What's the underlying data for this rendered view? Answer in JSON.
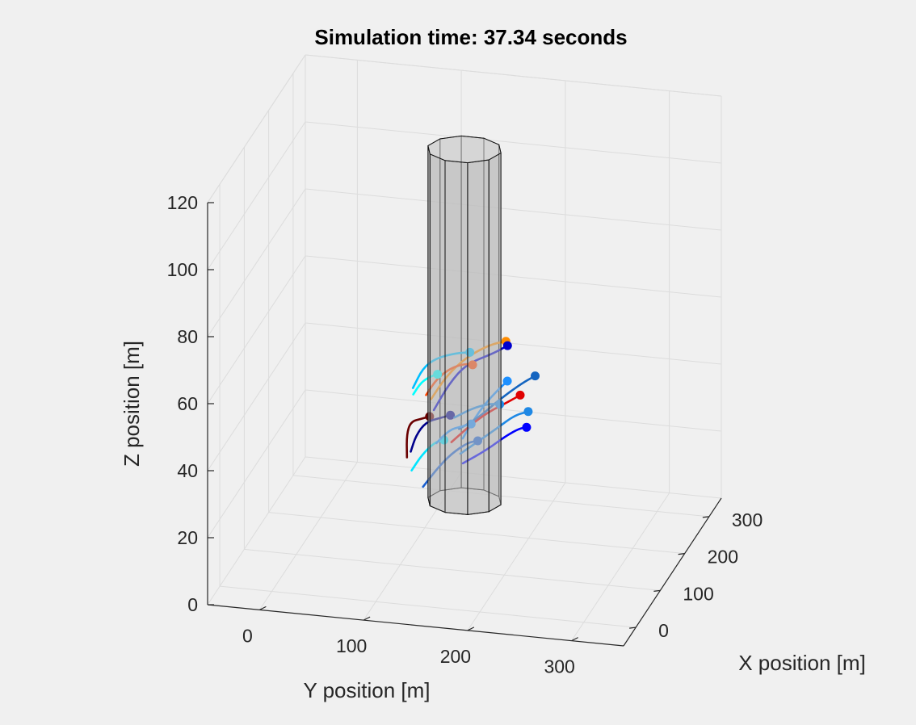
{
  "figure": {
    "background": "#f0f0f0"
  },
  "chart_data": {
    "type": "3d-line",
    "title": "Simulation time: 37.34 seconds",
    "xlabel": "X position [m]",
    "ylabel": "Y position [m]",
    "zlabel": "Z position [m]",
    "xlim": [
      -50,
      350
    ],
    "ylim": [
      -50,
      350
    ],
    "zlim": [
      0,
      120
    ],
    "x_ticks": [
      "0",
      "100",
      "200",
      "300"
    ],
    "y_ticks": [
      "0",
      "100",
      "200",
      "300"
    ],
    "z_ticks": [
      "0",
      "20",
      "40",
      "60",
      "80",
      "100",
      "120"
    ],
    "grid": true,
    "cylinder": {
      "center_x": 150,
      "center_y": 150,
      "radius": 35,
      "z_bottom": 15,
      "z_top": 120,
      "sides": 10,
      "face_color": "#bebebe"
    },
    "trajectories": [
      {
        "color": "#1e90ff",
        "points": [
          [
            113,
            157,
            38
          ],
          [
            130,
            160,
            40
          ],
          [
            150,
            168,
            44
          ],
          [
            170,
            178,
            47
          ],
          [
            185,
            183,
            48
          ]
        ]
      },
      {
        "color": "#ff8c00",
        "points": [
          [
            120,
            125,
            48
          ],
          [
            140,
            135,
            53
          ],
          [
            160,
            150,
            57
          ],
          [
            180,
            168,
            59
          ],
          [
            192,
            180,
            59
          ]
        ]
      },
      {
        "color": "#0000cd",
        "points": [
          [
            110,
            130,
            46
          ],
          [
            130,
            140,
            52
          ],
          [
            150,
            152,
            56
          ],
          [
            175,
            172,
            57
          ],
          [
            190,
            182,
            58
          ]
        ]
      },
      {
        "color": "#00bfff",
        "points": [
          [
            118,
            108,
            51
          ],
          [
            128,
            115,
            56
          ],
          [
            140,
            125,
            58
          ],
          [
            158,
            140,
            58
          ],
          [
            172,
            150,
            57
          ]
        ]
      },
      {
        "color": "#ff4500",
        "points": [
          [
            112,
            122,
            50
          ],
          [
            122,
            130,
            54
          ],
          [
            135,
            140,
            56
          ],
          [
            150,
            150,
            56
          ],
          [
            158,
            156,
            55
          ]
        ]
      },
      {
        "color": "#00ffff",
        "points": [
          [
            102,
            112,
            51
          ],
          [
            110,
            118,
            54
          ],
          [
            118,
            125,
            55
          ],
          [
            125,
            130,
            55
          ]
        ]
      },
      {
        "color": "#1565c0",
        "points": [
          [
            128,
            150,
            39
          ],
          [
            145,
            165,
            41
          ],
          [
            165,
            178,
            44
          ],
          [
            190,
            195,
            47
          ],
          [
            205,
            205,
            48
          ]
        ]
      },
      {
        "color": "#e00000",
        "points": [
          [
            118,
            145,
            36
          ],
          [
            140,
            158,
            39
          ],
          [
            160,
            170,
            41
          ],
          [
            180,
            183,
            42
          ],
          [
            195,
            193,
            43
          ]
        ]
      },
      {
        "color": "#1e88e5",
        "points": [
          [
            125,
            152,
            32
          ],
          [
            145,
            165,
            34
          ],
          [
            165,
            178,
            36
          ],
          [
            185,
            190,
            38
          ],
          [
            198,
            200,
            38
          ]
        ]
      },
      {
        "color": "#0000ff",
        "points": [
          [
            135,
            152,
            28
          ],
          [
            160,
            170,
            30
          ],
          [
            180,
            182,
            32
          ],
          [
            195,
            192,
            33
          ],
          [
            200,
            198,
            33
          ]
        ]
      },
      {
        "color": "#1a5fd0",
        "points": [
          [
            108,
            120,
            23
          ],
          [
            125,
            130,
            27
          ],
          [
            140,
            140,
            30
          ],
          [
            155,
            152,
            32
          ],
          [
            162,
            160,
            32
          ]
        ]
      },
      {
        "color": "#00e5ff",
        "points": [
          [
            104,
            110,
            28
          ],
          [
            112,
            118,
            32
          ],
          [
            122,
            128,
            35
          ],
          [
            130,
            135,
            35
          ]
        ]
      },
      {
        "color": "#1e90ff",
        "points": [
          [
            120,
            130,
            35
          ],
          [
            132,
            140,
            38
          ],
          [
            142,
            148,
            38
          ],
          [
            152,
            156,
            38
          ]
        ]
      },
      {
        "color": "#6a0000",
        "points": [
          [
            85,
            110,
            34
          ],
          [
            92,
            108,
            40
          ],
          [
            100,
            110,
            43
          ],
          [
            110,
            118,
            43
          ],
          [
            118,
            124,
            43
          ]
        ]
      },
      {
        "color": "#00008b",
        "points": [
          [
            92,
            112,
            35
          ],
          [
            100,
            115,
            39
          ],
          [
            112,
            122,
            42
          ],
          [
            125,
            132,
            42
          ],
          [
            135,
            140,
            42
          ]
        ]
      },
      {
        "color": "#1e88e5",
        "points": [
          [
            130,
            145,
            42
          ],
          [
            150,
            158,
            43
          ],
          [
            165,
            170,
            43
          ],
          [
            175,
            178,
            42
          ]
        ]
      }
    ]
  }
}
